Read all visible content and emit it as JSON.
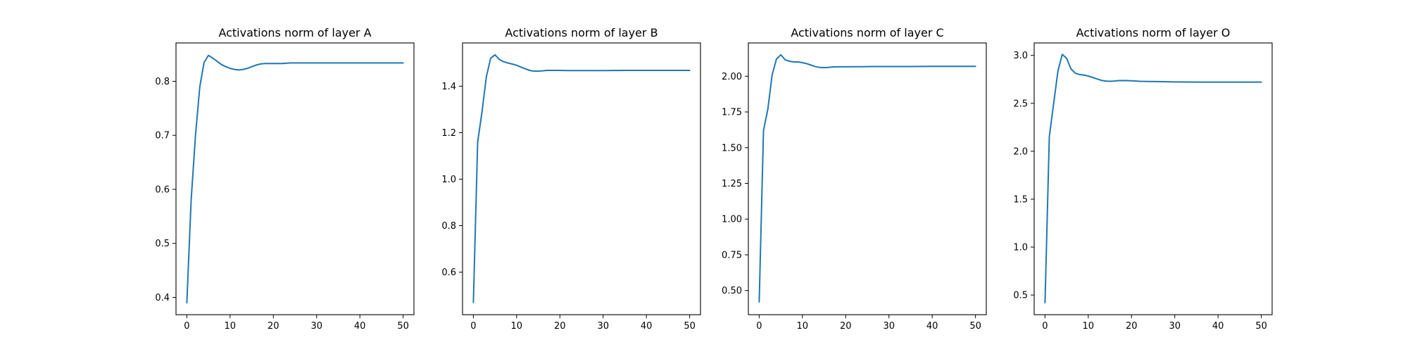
{
  "chart_data": [
    {
      "type": "line",
      "title": "Activations norm of layer A",
      "xlabel": "",
      "ylabel": "",
      "xlim": [
        -2.5,
        52.5
      ],
      "ylim": [
        0.368,
        0.871
      ],
      "xticks": [
        0,
        10,
        20,
        30,
        40,
        50
      ],
      "yticks": [
        0.4,
        0.5,
        0.6,
        0.7,
        0.8
      ],
      "ytick_labels": [
        "0.4",
        "0.5",
        "0.6",
        "0.7",
        "0.8"
      ],
      "grid": false,
      "color": "#1f77b4",
      "x": [
        0,
        1,
        2,
        3,
        4,
        5,
        6,
        7,
        8,
        9,
        10,
        11,
        12,
        13,
        14,
        15,
        16,
        17,
        18,
        19,
        20,
        22,
        24,
        26,
        28,
        30,
        35,
        40,
        45,
        50
      ],
      "y": [
        0.39,
        0.58,
        0.7,
        0.79,
        0.835,
        0.848,
        0.843,
        0.837,
        0.831,
        0.827,
        0.824,
        0.822,
        0.821,
        0.822,
        0.824,
        0.827,
        0.83,
        0.832,
        0.833,
        0.833,
        0.833,
        0.833,
        0.834,
        0.834,
        0.834,
        0.834,
        0.834,
        0.834,
        0.834,
        0.834
      ]
    },
    {
      "type": "line",
      "title": "Activations norm of layer B",
      "xlabel": "",
      "ylabel": "",
      "xlim": [
        -2.5,
        52.5
      ],
      "ylim": [
        0.417,
        1.586
      ],
      "xticks": [
        0,
        10,
        20,
        30,
        40,
        50
      ],
      "yticks": [
        0.6,
        0.8,
        1.0,
        1.2,
        1.4
      ],
      "ytick_labels": [
        "0.6",
        "0.8",
        "1.0",
        "1.2",
        "1.4"
      ],
      "grid": false,
      "color": "#1f77b4",
      "x": [
        0,
        1,
        2,
        3,
        4,
        5,
        6,
        7,
        8,
        9,
        10,
        11,
        12,
        13,
        14,
        15,
        16,
        17,
        18,
        19,
        20,
        22,
        24,
        26,
        28,
        30,
        35,
        40,
        45,
        50
      ],
      "y": [
        0.47,
        1.16,
        1.29,
        1.44,
        1.52,
        1.535,
        1.515,
        1.505,
        1.5,
        1.495,
        1.49,
        1.482,
        1.475,
        1.468,
        1.465,
        1.465,
        1.466,
        1.468,
        1.468,
        1.468,
        1.468,
        1.467,
        1.467,
        1.467,
        1.467,
        1.467,
        1.468,
        1.468,
        1.468,
        1.468
      ]
    },
    {
      "type": "line",
      "title": "Activations norm of layer C",
      "xlabel": "",
      "ylabel": "",
      "xlim": [
        -2.5,
        52.5
      ],
      "ylim": [
        0.331,
        2.233
      ],
      "xticks": [
        0,
        10,
        20,
        30,
        40,
        50
      ],
      "yticks": [
        0.5,
        0.75,
        1.0,
        1.25,
        1.5,
        1.75,
        2.0
      ],
      "ytick_labels": [
        "0.50",
        "0.75",
        "1.00",
        "1.25",
        "1.50",
        "1.75",
        "2.00"
      ],
      "grid": false,
      "color": "#1f77b4",
      "x": [
        0,
        1,
        2,
        3,
        4,
        5,
        6,
        7,
        8,
        9,
        10,
        11,
        12,
        13,
        14,
        15,
        16,
        17,
        18,
        19,
        20,
        22,
        24,
        26,
        28,
        30,
        35,
        40,
        45,
        50
      ],
      "y": [
        0.42,
        1.62,
        1.77,
        2.01,
        2.12,
        2.15,
        2.115,
        2.105,
        2.1,
        2.1,
        2.095,
        2.088,
        2.078,
        2.067,
        2.062,
        2.06,
        2.062,
        2.065,
        2.066,
        2.066,
        2.066,
        2.067,
        2.067,
        2.068,
        2.068,
        2.068,
        2.068,
        2.069,
        2.069,
        2.069
      ]
    },
    {
      "type": "line",
      "title": "Activations norm of layer O",
      "xlabel": "",
      "ylabel": "",
      "xlim": [
        -2.5,
        52.5
      ],
      "ylim": [
        0.295,
        3.13
      ],
      "xticks": [
        0,
        10,
        20,
        30,
        40,
        50
      ],
      "yticks": [
        0.5,
        1.0,
        1.5,
        2.0,
        2.5,
        3.0
      ],
      "ytick_labels": [
        "0.5",
        "1.0",
        "1.5",
        "2.0",
        "2.5",
        "3.0"
      ],
      "grid": false,
      "color": "#1f77b4",
      "x": [
        0,
        1,
        2,
        3,
        4,
        5,
        6,
        7,
        8,
        9,
        10,
        11,
        12,
        13,
        14,
        15,
        16,
        17,
        18,
        19,
        20,
        22,
        24,
        26,
        28,
        30,
        35,
        40,
        45,
        50
      ],
      "y": [
        0.42,
        2.15,
        2.5,
        2.84,
        3.01,
        2.97,
        2.86,
        2.815,
        2.8,
        2.795,
        2.785,
        2.77,
        2.755,
        2.74,
        2.733,
        2.73,
        2.733,
        2.737,
        2.738,
        2.737,
        2.735,
        2.73,
        2.728,
        2.727,
        2.725,
        2.723,
        2.722,
        2.722,
        2.722,
        2.722
      ]
    }
  ]
}
